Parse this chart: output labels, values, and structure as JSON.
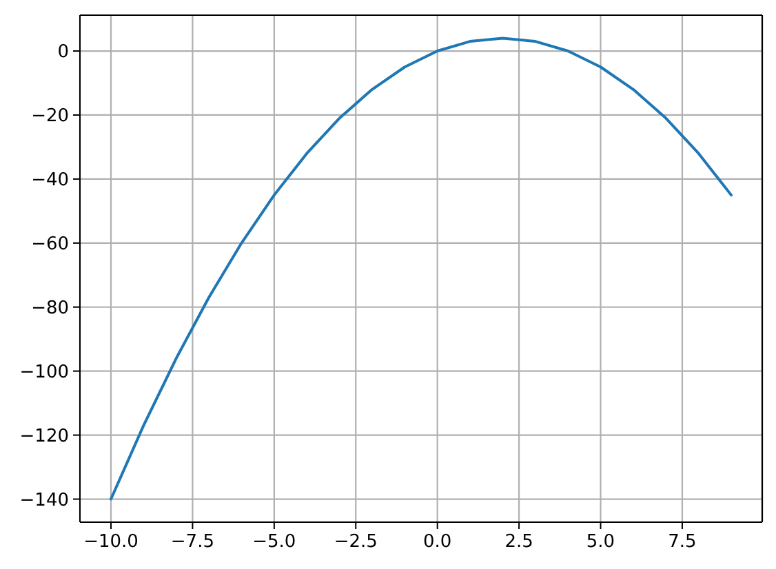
{
  "chart_data": {
    "type": "line",
    "x": [
      -10,
      -9,
      -8,
      -7,
      -6,
      -5,
      -4,
      -3,
      -2,
      -1,
      0,
      1,
      2,
      3,
      4,
      5,
      6,
      7,
      8,
      9
    ],
    "values": [
      -140,
      -117,
      -96,
      -77,
      -60,
      -45,
      -32,
      -21,
      -12,
      -5,
      0,
      3,
      4,
      3,
      0,
      -5,
      -12,
      -21,
      -32,
      -45
    ],
    "color": "#1f77b4",
    "xlim": [
      -10.95,
      9.95
    ],
    "ylim": [
      -147.2,
      11.2
    ],
    "xticks": [
      {
        "value": -10,
        "label": "−10.0"
      },
      {
        "value": -7.5,
        "label": "−7.5"
      },
      {
        "value": -5,
        "label": "−5.0"
      },
      {
        "value": -2.5,
        "label": "−2.5"
      },
      {
        "value": 0,
        "label": "0.0"
      },
      {
        "value": 2.5,
        "label": "2.5"
      },
      {
        "value": 5,
        "label": "5.0"
      },
      {
        "value": 7.5,
        "label": "7.5"
      }
    ],
    "yticks": [
      {
        "value": -140,
        "label": "−140"
      },
      {
        "value": -120,
        "label": "−120"
      },
      {
        "value": -100,
        "label": "−100"
      },
      {
        "value": -80,
        "label": "−80"
      },
      {
        "value": -60,
        "label": "−60"
      },
      {
        "value": -40,
        "label": "−40"
      },
      {
        "value": -20,
        "label": "−20"
      },
      0
    ],
    "grid": true
  }
}
